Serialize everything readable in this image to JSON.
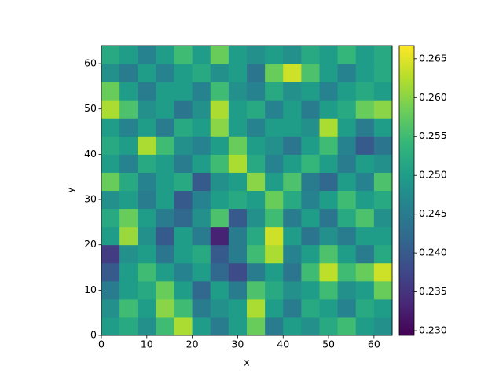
{
  "chart_data": {
    "type": "heatmap",
    "colormap": "viridis",
    "xlabel": "x",
    "ylabel": "y",
    "xlim": [
      0,
      64
    ],
    "ylim": [
      0,
      64
    ],
    "xticks": [
      0,
      10,
      20,
      30,
      40,
      50,
      60
    ],
    "yticks": [
      0,
      10,
      20,
      30,
      40,
      50,
      60
    ],
    "xbins": [
      0,
      4,
      8,
      12,
      16,
      20,
      24,
      28,
      32,
      36,
      40,
      44,
      48,
      52,
      56,
      60,
      64
    ],
    "ybins": [
      0,
      4,
      8,
      12,
      16,
      20,
      24,
      28,
      32,
      36,
      40,
      44,
      48,
      52,
      56,
      60,
      64
    ],
    "clim": [
      0.2294,
      0.2667
    ],
    "cticks": [
      {
        "value": 0.23,
        "label": "0.230"
      },
      0.235,
      {
        "value": 0.24,
        "label": "0.240"
      },
      0.245,
      {
        "value": 0.25,
        "label": "0.250"
      },
      0.255,
      {
        "value": 0.26,
        "label": "0.260"
      },
      0.265
    ],
    "values": [
      [
        0.25,
        0.252,
        0.248,
        0.255,
        0.262,
        0.25,
        0.245,
        0.25,
        0.258,
        0.245,
        0.25,
        0.248,
        0.252,
        0.255,
        0.25,
        0.248
      ],
      [
        0.248,
        0.255,
        0.25,
        0.26,
        0.255,
        0.245,
        0.248,
        0.25,
        0.262,
        0.25,
        0.245,
        0.252,
        0.25,
        0.246,
        0.252,
        0.25
      ],
      [
        0.245,
        0.25,
        0.252,
        0.258,
        0.25,
        0.242,
        0.25,
        0.245,
        0.256,
        0.252,
        0.248,
        0.25,
        0.255,
        0.248,
        0.25,
        0.258
      ],
      [
        0.24,
        0.25,
        0.255,
        0.25,
        0.246,
        0.25,
        0.242,
        0.238,
        0.245,
        0.25,
        0.244,
        0.255,
        0.263,
        0.255,
        0.258,
        0.264
      ],
      [
        0.236,
        0.248,
        0.25,
        0.244,
        0.25,
        0.252,
        0.24,
        0.245,
        0.255,
        0.262,
        0.246,
        0.25,
        0.256,
        0.25,
        0.245,
        0.252
      ],
      [
        0.25,
        0.261,
        0.248,
        0.24,
        0.25,
        0.245,
        0.233,
        0.245,
        0.252,
        0.264,
        0.25,
        0.244,
        0.248,
        0.245,
        0.25,
        0.25
      ],
      [
        0.252,
        0.258,
        0.25,
        0.245,
        0.242,
        0.248,
        0.256,
        0.24,
        0.248,
        0.255,
        0.245,
        0.25,
        0.244,
        0.252,
        0.256,
        0.248
      ],
      [
        0.248,
        0.25,
        0.245,
        0.25,
        0.24,
        0.246,
        0.25,
        0.252,
        0.25,
        0.258,
        0.252,
        0.246,
        0.25,
        0.255,
        0.25,
        0.252
      ],
      [
        0.258,
        0.252,
        0.246,
        0.25,
        0.252,
        0.24,
        0.248,
        0.25,
        0.26,
        0.25,
        0.256,
        0.245,
        0.242,
        0.25,
        0.246,
        0.256
      ],
      [
        0.25,
        0.246,
        0.252,
        0.25,
        0.245,
        0.25,
        0.255,
        0.262,
        0.252,
        0.246,
        0.25,
        0.254,
        0.25,
        0.245,
        0.25,
        0.248
      ],
      [
        0.252,
        0.25,
        0.262,
        0.255,
        0.248,
        0.246,
        0.25,
        0.258,
        0.25,
        0.248,
        0.244,
        0.25,
        0.255,
        0.246,
        0.24,
        0.244
      ],
      [
        0.25,
        0.246,
        0.25,
        0.245,
        0.252,
        0.25,
        0.26,
        0.25,
        0.246,
        0.25,
        0.25,
        0.248,
        0.262,
        0.25,
        0.245,
        0.25
      ],
      [
        0.262,
        0.256,
        0.248,
        0.25,
        0.244,
        0.248,
        0.262,
        0.25,
        0.252,
        0.246,
        0.25,
        0.245,
        0.25,
        0.252,
        0.258,
        0.26
      ],
      [
        0.258,
        0.25,
        0.245,
        0.25,
        0.25,
        0.246,
        0.255,
        0.248,
        0.246,
        0.252,
        0.248,
        0.25,
        0.246,
        0.25,
        0.252,
        0.25
      ],
      [
        0.248,
        0.245,
        0.25,
        0.246,
        0.25,
        0.252,
        0.248,
        0.25,
        0.244,
        0.258,
        0.264,
        0.256,
        0.25,
        0.246,
        0.25,
        0.252
      ],
      [
        0.252,
        0.25,
        0.246,
        0.25,
        0.255,
        0.25,
        0.258,
        0.25,
        0.248,
        0.25,
        0.248,
        0.252,
        0.25,
        0.254,
        0.25,
        0.252
      ]
    ]
  }
}
